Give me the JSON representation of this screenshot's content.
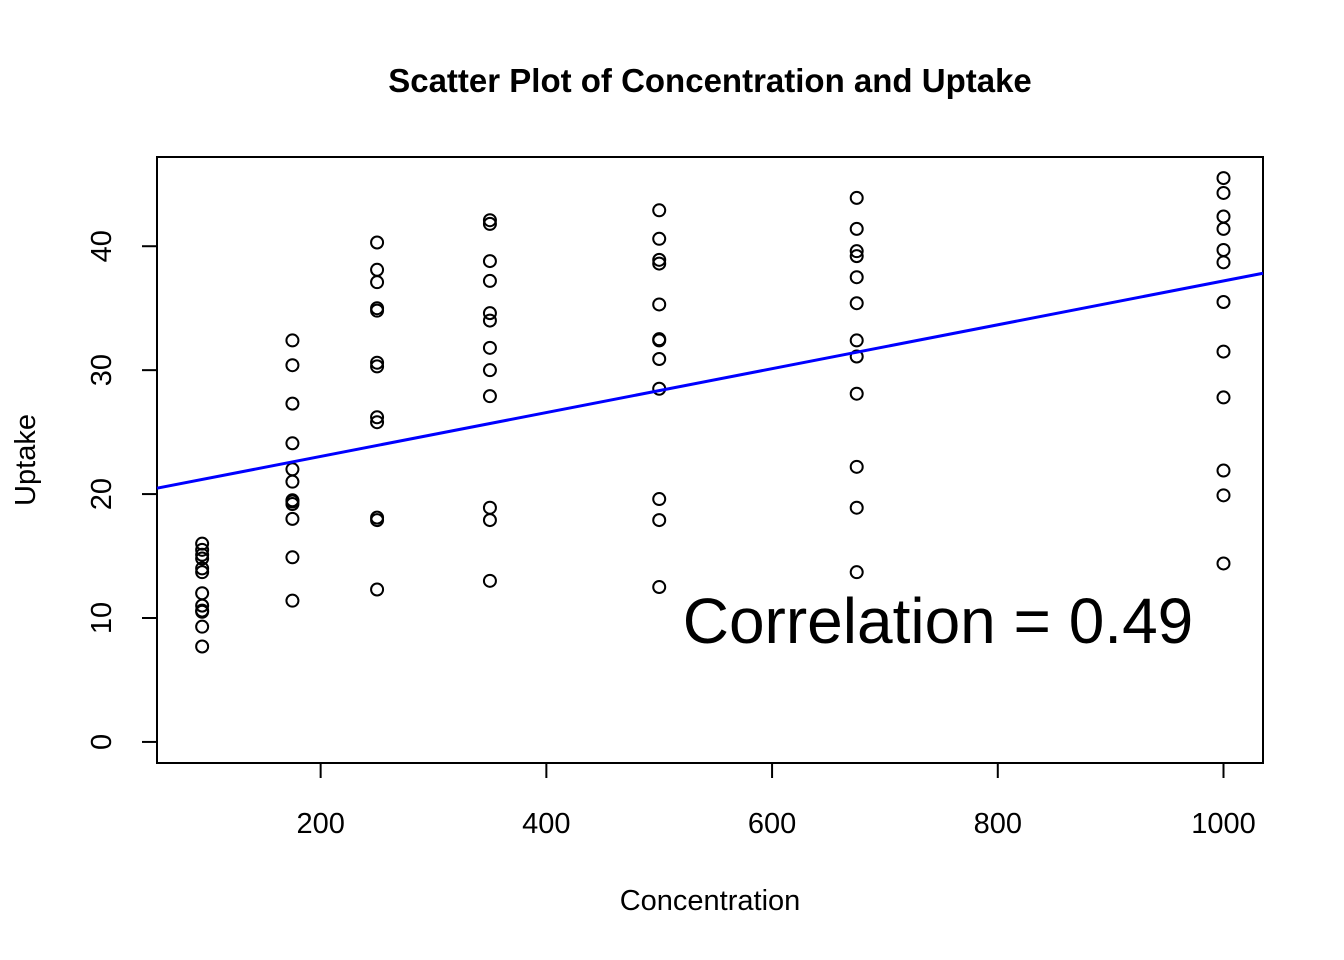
{
  "chart_data": {
    "type": "scatter",
    "title": "Scatter Plot of Concentration and Uptake",
    "xlabel": "Concentration",
    "ylabel": "Uptake",
    "xlim": [
      55,
      1035
    ],
    "ylim": [
      -1.7,
      47.2
    ],
    "xticks": [
      200,
      400,
      600,
      800,
      1000
    ],
    "yticks": [
      0,
      10,
      20,
      30,
      40
    ],
    "annotation": "Correlation = 0.49",
    "line_color": "#0000ff",
    "point_color": "#000000",
    "regression": {
      "intercept": 19.5,
      "slope": 0.0177
    },
    "points": [
      [
        95,
        16.0
      ],
      [
        95,
        15.5
      ],
      [
        95,
        14.8
      ],
      [
        95,
        14.0
      ],
      [
        95,
        13.7
      ],
      [
        95,
        12.0
      ],
      [
        95,
        11.0
      ],
      [
        95,
        10.6
      ],
      [
        95,
        9.3
      ],
      [
        95,
        7.7
      ],
      [
        95,
        10.5
      ],
      [
        95,
        15.1
      ],
      [
        175,
        32.4
      ],
      [
        175,
        30.4
      ],
      [
        175,
        27.3
      ],
      [
        175,
        24.1
      ],
      [
        175,
        22.0
      ],
      [
        175,
        21.0
      ],
      [
        175,
        19.5
      ],
      [
        175,
        19.2
      ],
      [
        175,
        18.0
      ],
      [
        175,
        14.9
      ],
      [
        175,
        11.4
      ],
      [
        175,
        19.4
      ],
      [
        250,
        40.3
      ],
      [
        250,
        38.1
      ],
      [
        250,
        37.1
      ],
      [
        250,
        35.0
      ],
      [
        250,
        34.8
      ],
      [
        250,
        30.6
      ],
      [
        250,
        30.3
      ],
      [
        250,
        26.2
      ],
      [
        250,
        25.8
      ],
      [
        250,
        18.1
      ],
      [
        250,
        17.9
      ],
      [
        250,
        12.3
      ],
      [
        350,
        42.1
      ],
      [
        350,
        41.8
      ],
      [
        350,
        38.8
      ],
      [
        350,
        37.2
      ],
      [
        350,
        34.6
      ],
      [
        350,
        34.0
      ],
      [
        350,
        31.8
      ],
      [
        350,
        30.0
      ],
      [
        350,
        27.9
      ],
      [
        350,
        18.9
      ],
      [
        350,
        17.9
      ],
      [
        350,
        13.0
      ],
      [
        500,
        42.9
      ],
      [
        500,
        40.6
      ],
      [
        500,
        38.9
      ],
      [
        500,
        38.6
      ],
      [
        500,
        35.3
      ],
      [
        500,
        32.5
      ],
      [
        500,
        32.4
      ],
      [
        500,
        30.9
      ],
      [
        500,
        28.5
      ],
      [
        500,
        19.6
      ],
      [
        500,
        17.9
      ],
      [
        500,
        12.5
      ],
      [
        675,
        43.9
      ],
      [
        675,
        41.4
      ],
      [
        675,
        39.6
      ],
      [
        675,
        39.2
      ],
      [
        675,
        37.5
      ],
      [
        675,
        35.4
      ],
      [
        675,
        32.4
      ],
      [
        675,
        31.1
      ],
      [
        675,
        28.1
      ],
      [
        675,
        22.2
      ],
      [
        675,
        18.9
      ],
      [
        675,
        13.7
      ],
      [
        1000,
        45.5
      ],
      [
        1000,
        44.3
      ],
      [
        1000,
        42.4
      ],
      [
        1000,
        41.4
      ],
      [
        1000,
        39.7
      ],
      [
        1000,
        38.7
      ],
      [
        1000,
        35.5
      ],
      [
        1000,
        31.5
      ],
      [
        1000,
        27.8
      ],
      [
        1000,
        21.9
      ],
      [
        1000,
        19.9
      ],
      [
        1000,
        14.4
      ]
    ]
  }
}
